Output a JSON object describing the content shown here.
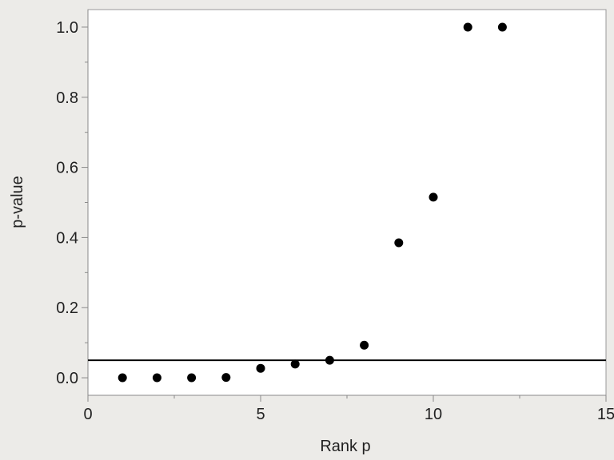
{
  "chart_data": {
    "type": "scatter",
    "xlabel": "Rank p",
    "ylabel": "p-value",
    "xlim": [
      0,
      15
    ],
    "ylim": [
      -0.05,
      1.05
    ],
    "x_ticks": [
      0,
      5,
      10,
      15
    ],
    "x_tick_labels": [
      "0",
      "5",
      "10",
      "15"
    ],
    "y_ticks": [
      0.0,
      0.2,
      0.4,
      0.6,
      0.8,
      1.0
    ],
    "y_tick_labels": [
      "0.0",
      "0.2",
      "0.4",
      "0.6",
      "0.8",
      "1.0"
    ],
    "grid": false,
    "reference_line": 0.05,
    "series": [
      {
        "x": [
          1,
          2,
          3,
          4,
          5,
          6,
          7,
          8,
          9,
          10,
          11,
          12
        ],
        "y": [
          0.0,
          0.0,
          0.0,
          0.001,
          0.027,
          0.039,
          0.05,
          0.093,
          0.385,
          0.515,
          1.0,
          1.0
        ]
      }
    ],
    "colors": {
      "marker": "#000000",
      "reference_line": "#000000",
      "plot_background": "#ffffff",
      "page_background": "#ecebe8"
    }
  }
}
